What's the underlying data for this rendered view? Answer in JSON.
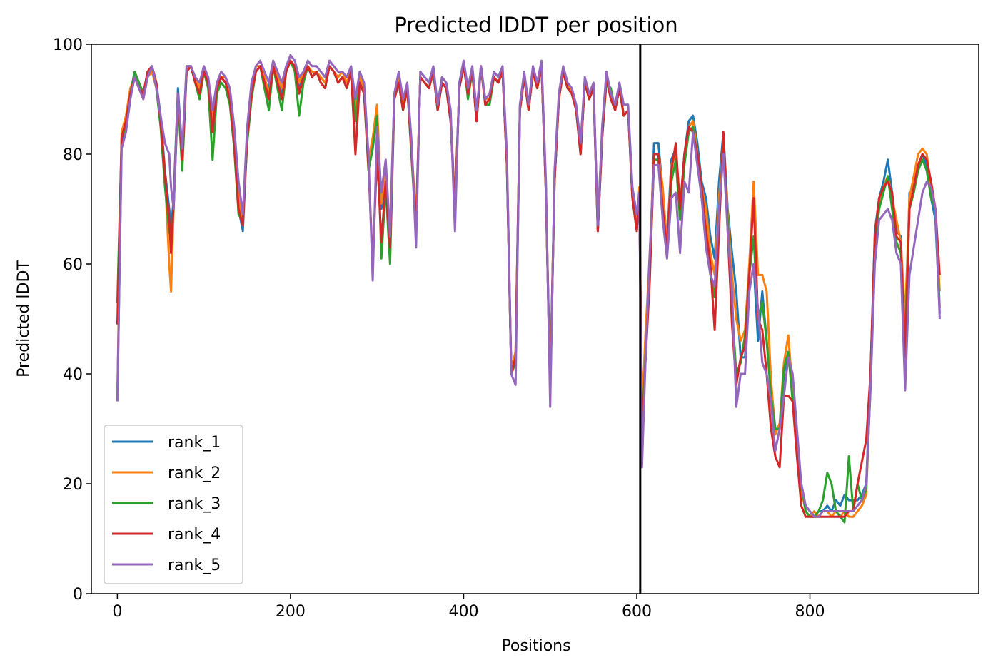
{
  "chart_data": {
    "type": "line",
    "title": "Predicted lDDT per position",
    "xlabel": "Positions",
    "ylabel": "Predicted lDDT",
    "xlim": [
      -30,
      995
    ],
    "ylim": [
      0,
      100
    ],
    "xticks": [
      0,
      200,
      400,
      600,
      800
    ],
    "yticks": [
      0,
      20,
      40,
      60,
      80,
      100
    ],
    "xtick_labels": [
      "0",
      "200",
      "400",
      "600",
      "800"
    ],
    "ytick_labels": [
      "0",
      "20",
      "40",
      "60",
      "80",
      "100"
    ],
    "grid": false,
    "legend_position": "lower-left",
    "vertical_line_x": 604,
    "vertical_line_color": "#000000",
    "x": [
      0,
      5,
      10,
      15,
      20,
      25,
      30,
      35,
      40,
      45,
      50,
      55,
      60,
      62,
      65,
      70,
      75,
      80,
      85,
      90,
      95,
      100,
      105,
      110,
      115,
      120,
      125,
      130,
      135,
      140,
      145,
      150,
      155,
      160,
      165,
      170,
      175,
      180,
      185,
      190,
      195,
      200,
      205,
      210,
      215,
      220,
      225,
      230,
      235,
      240,
      245,
      250,
      255,
      260,
      265,
      270,
      275,
      280,
      285,
      290,
      295,
      300,
      305,
      310,
      315,
      320,
      325,
      330,
      335,
      340,
      345,
      350,
      355,
      360,
      365,
      370,
      375,
      380,
      385,
      390,
      395,
      400,
      405,
      410,
      415,
      420,
      425,
      430,
      435,
      440,
      445,
      450,
      455,
      460,
      465,
      470,
      475,
      480,
      485,
      490,
      495,
      500,
      505,
      510,
      515,
      520,
      525,
      530,
      535,
      540,
      545,
      550,
      555,
      560,
      565,
      570,
      575,
      580,
      585,
      590,
      595,
      600,
      603,
      606,
      610,
      615,
      620,
      625,
      630,
      635,
      640,
      645,
      650,
      655,
      660,
      665,
      670,
      675,
      680,
      685,
      690,
      695,
      700,
      705,
      710,
      715,
      720,
      725,
      730,
      735,
      740,
      745,
      750,
      755,
      760,
      765,
      770,
      775,
      780,
      785,
      790,
      795,
      800,
      805,
      810,
      815,
      820,
      825,
      830,
      835,
      840,
      845,
      850,
      855,
      860,
      865,
      870,
      875,
      880,
      885,
      890,
      895,
      900,
      905,
      910,
      915,
      920,
      925,
      930,
      935,
      940,
      945,
      950
    ],
    "series": [
      {
        "name": "rank_1",
        "color": "#1f77b4",
        "values": [
          35,
          82,
          86,
          91,
          95,
          93,
          91,
          95,
          96,
          93,
          87,
          77,
          70,
          66,
          72,
          92,
          80,
          95,
          96,
          93,
          91,
          95,
          93,
          85,
          92,
          94,
          93,
          90,
          82,
          70,
          66,
          83,
          91,
          95,
          96,
          93,
          92,
          96,
          93,
          91,
          95,
          97,
          96,
          92,
          94,
          96,
          94,
          95,
          93,
          92,
          96,
          95,
          93,
          94,
          92,
          95,
          87,
          93,
          92,
          78,
          82,
          88,
          70,
          76,
          64,
          90,
          93,
          88,
          92,
          80,
          67,
          94,
          93,
          92,
          95,
          88,
          93,
          92,
          86,
          70,
          92,
          96,
          91,
          95,
          86,
          96,
          89,
          90,
          94,
          93,
          95,
          78,
          40,
          43,
          89,
          94,
          88,
          95,
          92,
          96,
          73,
          37,
          75,
          90,
          95,
          92,
          91,
          88,
          80,
          93,
          90,
          92,
          66,
          83,
          94,
          90,
          88,
          92,
          87,
          88,
          72,
          66,
          73,
          31,
          44,
          60,
          82,
          82,
          73,
          64,
          79,
          81,
          70,
          80,
          86,
          87,
          82,
          75,
          72,
          65,
          61,
          75,
          84,
          70,
          62,
          55,
          43,
          43,
          55,
          60,
          46,
          55,
          46,
          38,
          30,
          30,
          40,
          44,
          36,
          28,
          20,
          16,
          15,
          14,
          15,
          15,
          16,
          15,
          17,
          16,
          18,
          17,
          17,
          17,
          18,
          20,
          40,
          66,
          72,
          75,
          79,
          73,
          66,
          65,
          43,
          73,
          73,
          78,
          80,
          78,
          72,
          68,
          51
        ]
      },
      {
        "name": "rank_2",
        "color": "#ff7f0e",
        "values": [
          36,
          84,
          87,
          92,
          94,
          92,
          90,
          94,
          95,
          92,
          86,
          76,
          60,
          55,
          70,
          91,
          79,
          96,
          96,
          94,
          92,
          96,
          94,
          86,
          93,
          94,
          94,
          91,
          83,
          72,
          67,
          84,
          92,
          96,
          96,
          94,
          91,
          96,
          94,
          92,
          96,
          97,
          96,
          93,
          95,
          96,
          95,
          95,
          94,
          93,
          96,
          95,
          94,
          95,
          93,
          95,
          88,
          94,
          92,
          79,
          83,
          89,
          71,
          77,
          66,
          91,
          94,
          89,
          92,
          81,
          68,
          94,
          93,
          92,
          95,
          89,
          93,
          92,
          87,
          71,
          92,
          96,
          92,
          95,
          87,
          96,
          90,
          90,
          94,
          93,
          95,
          79,
          41,
          44,
          88,
          94,
          88,
          95,
          92,
          96,
          74,
          38,
          76,
          90,
          95,
          93,
          91,
          88,
          81,
          93,
          90,
          92,
          67,
          84,
          94,
          90,
          89,
          92,
          87,
          88,
          73,
          67,
          74,
          33,
          47,
          62,
          80,
          80,
          74,
          63,
          78,
          80,
          71,
          79,
          85,
          86,
          80,
          74,
          70,
          62,
          58,
          72,
          82,
          69,
          58,
          50,
          46,
          48,
          60,
          75,
          58,
          58,
          55,
          39,
          29,
          31,
          42,
          47,
          37,
          27,
          19,
          15,
          14,
          15,
          14,
          15,
          15,
          14,
          15,
          14,
          15,
          14,
          14,
          15,
          16,
          18,
          38,
          64,
          70,
          74,
          76,
          72,
          68,
          64,
          50,
          72,
          76,
          80,
          81,
          80,
          74,
          70,
          55
        ]
      },
      {
        "name": "rank_3",
        "color": "#2ca02c",
        "values": [
          53,
          83,
          85,
          91,
          95,
          93,
          91,
          94,
          96,
          92,
          85,
          74,
          66,
          65,
          70,
          90,
          77,
          95,
          96,
          93,
          90,
          95,
          92,
          79,
          91,
          93,
          92,
          89,
          81,
          69,
          68,
          82,
          90,
          95,
          96,
          92,
          88,
          96,
          92,
          88,
          95,
          97,
          95,
          87,
          93,
          96,
          94,
          95,
          93,
          92,
          96,
          95,
          93,
          94,
          92,
          95,
          86,
          93,
          91,
          77,
          81,
          87,
          61,
          74,
          60,
          90,
          93,
          88,
          92,
          79,
          66,
          94,
          93,
          92,
          95,
          88,
          93,
          92,
          86,
          70,
          92,
          97,
          90,
          95,
          86,
          96,
          89,
          89,
          94,
          93,
          95,
          78,
          40,
          42,
          88,
          94,
          88,
          95,
          92,
          96,
          73,
          37,
          75,
          90,
          95,
          92,
          91,
          88,
          80,
          93,
          90,
          92,
          66,
          83,
          93,
          92,
          88,
          92,
          87,
          88,
          72,
          66,
          73,
          29,
          43,
          58,
          79,
          79,
          68,
          62,
          75,
          79,
          68,
          78,
          84,
          85,
          79,
          72,
          66,
          58,
          54,
          70,
          81,
          68,
          52,
          40,
          42,
          47,
          58,
          65,
          50,
          53,
          46,
          36,
          30,
          30,
          41,
          44,
          35,
          28,
          20,
          15,
          14,
          14,
          15,
          17,
          22,
          20,
          15,
          14,
          13,
          25,
          15,
          20,
          17,
          19,
          38,
          63,
          70,
          73,
          76,
          70,
          64,
          62,
          46,
          70,
          73,
          77,
          79,
          77,
          72,
          70,
          52
        ]
      },
      {
        "name": "rank_4",
        "color": "#d62728",
        "values": [
          49,
          83,
          86,
          91,
          94,
          92,
          91,
          95,
          96,
          93,
          86,
          76,
          68,
          62,
          71,
          91,
          79,
          95,
          96,
          93,
          91,
          95,
          93,
          84,
          92,
          94,
          93,
          90,
          82,
          70,
          67,
          83,
          91,
          95,
          96,
          93,
          90,
          96,
          93,
          90,
          95,
          97,
          96,
          91,
          94,
          96,
          94,
          95,
          93,
          92,
          96,
          95,
          93,
          94,
          92,
          95,
          80,
          93,
          91,
          78,
          60,
          80,
          64,
          75,
          63,
          90,
          93,
          88,
          92,
          80,
          67,
          94,
          93,
          92,
          95,
          88,
          93,
          92,
          86,
          70,
          92,
          96,
          91,
          95,
          86,
          96,
          89,
          90,
          94,
          93,
          95,
          78,
          40,
          43,
          88,
          94,
          88,
          95,
          92,
          96,
          73,
          37,
          75,
          90,
          95,
          92,
          91,
          88,
          80,
          93,
          90,
          92,
          66,
          83,
          94,
          90,
          88,
          92,
          87,
          88,
          72,
          66,
          73,
          28,
          42,
          57,
          80,
          80,
          70,
          63,
          77,
          82,
          70,
          80,
          85,
          84,
          80,
          74,
          66,
          60,
          48,
          66,
          84,
          66,
          49,
          38,
          43,
          45,
          58,
          72,
          50,
          48,
          40,
          30,
          25,
          23,
          36,
          36,
          35,
          25,
          16,
          14,
          14,
          14,
          14,
          14,
          14,
          14,
          14,
          14,
          14,
          15,
          15,
          20,
          24,
          28,
          40,
          65,
          72,
          74,
          75,
          73,
          65,
          64,
          43,
          70,
          74,
          78,
          80,
          79,
          75,
          70,
          58
        ]
      },
      {
        "name": "rank_5",
        "color": "#9467bd",
        "values": [
          35,
          81,
          84,
          90,
          94,
          92,
          90,
          94,
          96,
          92,
          87,
          82,
          80,
          74,
          70,
          91,
          81,
          96,
          96,
          94,
          93,
          96,
          94,
          88,
          93,
          95,
          94,
          92,
          85,
          75,
          69,
          85,
          93,
          96,
          97,
          95,
          93,
          97,
          95,
          93,
          96,
          98,
          97,
          94,
          95,
          97,
          96,
          96,
          95,
          94,
          97,
          96,
          95,
          95,
          94,
          96,
          90,
          95,
          93,
          80,
          57,
          85,
          73,
          79,
          65,
          91,
          95,
          90,
          93,
          82,
          63,
          95,
          94,
          93,
          96,
          89,
          94,
          93,
          88,
          66,
          93,
          97,
          92,
          96,
          88,
          96,
          90,
          91,
          95,
          94,
          96,
          80,
          40,
          38,
          89,
          95,
          89,
          96,
          93,
          97,
          75,
          34,
          77,
          91,
          96,
          93,
          92,
          89,
          82,
          94,
          91,
          93,
          67,
          85,
          95,
          91,
          89,
          93,
          89,
          89,
          74,
          69,
          73,
          23,
          42,
          62,
          78,
          78,
          68,
          61,
          72,
          73,
          62,
          75,
          73,
          84,
          78,
          72,
          63,
          58,
          56,
          70,
          80,
          66,
          55,
          34,
          40,
          40,
          55,
          60,
          52,
          42,
          40,
          35,
          26,
          30,
          36,
          43,
          40,
          30,
          20,
          16,
          15,
          14,
          14,
          15,
          15,
          15,
          15,
          15,
          15,
          15,
          15,
          16,
          17,
          20,
          37,
          60,
          68,
          69,
          70,
          68,
          62,
          60,
          37,
          58,
          63,
          68,
          73,
          75,
          74,
          70,
          50
        ]
      }
    ]
  }
}
